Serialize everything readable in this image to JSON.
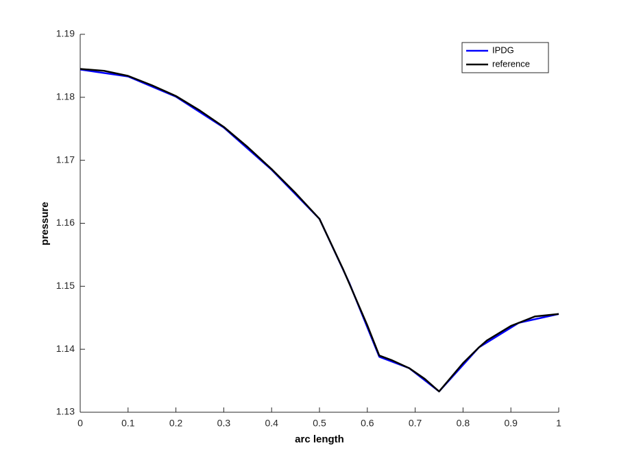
{
  "chart_data": {
    "type": "line",
    "xlabel": "arc length",
    "ylabel": "pressure",
    "xlim": [
      0,
      1
    ],
    "ylim": [
      1.13,
      1.19
    ],
    "xticks": [
      0,
      0.1,
      0.2,
      0.3,
      0.4,
      0.5,
      0.6,
      0.7,
      0.8,
      0.9,
      1
    ],
    "yticks": [
      1.13,
      1.14,
      1.15,
      1.16,
      1.17,
      1.18,
      1.19
    ],
    "legend": "top-right",
    "series": [
      {
        "name": "IPDG",
        "color": "#0000ff",
        "x": [
          0,
          0.1,
          0.2,
          0.3,
          0.4,
          0.5,
          0.5625,
          0.625,
          0.6875,
          0.75,
          0.8333,
          0.9167,
          1
        ],
        "values": [
          1.1844,
          1.1833,
          1.1801,
          1.1752,
          1.1685,
          1.1607,
          1.1505,
          1.1388,
          1.137,
          1.1333,
          1.1403,
          1.1442,
          1.1456
        ]
      },
      {
        "name": "reference",
        "color": "#000000",
        "x": [
          0,
          0.05,
          0.1,
          0.15,
          0.2,
          0.25,
          0.3,
          0.35,
          0.4,
          0.45,
          0.5,
          0.55,
          0.6,
          0.625,
          0.65,
          0.6875,
          0.72,
          0.75,
          0.8,
          0.8333,
          0.85,
          0.9,
          0.95,
          1
        ],
        "values": [
          1.1845,
          1.1842,
          1.1834,
          1.1819,
          1.1802,
          1.1779,
          1.1753,
          1.1721,
          1.1686,
          1.1648,
          1.1607,
          1.1526,
          1.1438,
          1.139,
          1.1383,
          1.137,
          1.1353,
          1.1333,
          1.1378,
          1.1403,
          1.1414,
          1.1437,
          1.1452,
          1.1456
        ]
      }
    ]
  }
}
